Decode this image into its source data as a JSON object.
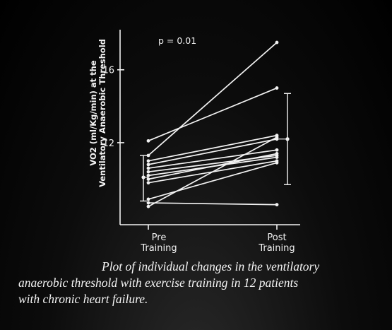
{
  "chart_data": {
    "type": "line",
    "title": "",
    "annotation": "p = 0.01",
    "xlabel": "",
    "ylabel": [
      "VO2 (ml/Kg/min) at the",
      "Ventilatory Anaerobic Threshold"
    ],
    "categories": [
      "Pre Training",
      "Post Training"
    ],
    "category_lines": [
      [
        "Pre",
        "Training"
      ],
      [
        "Post",
        "Training"
      ]
    ],
    "ylim": [
      7.5,
      18.2
    ],
    "yticks": [
      12,
      16
    ],
    "ytick_labels": [
      "12",
      "16"
    ],
    "grid": false,
    "series": [
      {
        "values": [
          12.1,
          15.0
        ]
      },
      {
        "values": [
          11.3,
          17.5
        ]
      },
      {
        "values": [
          11.0,
          12.4
        ]
      },
      {
        "values": [
          10.8,
          12.2
        ]
      },
      {
        "values": [
          10.6,
          11.6
        ]
      },
      {
        "values": [
          10.4,
          11.3
        ]
      },
      {
        "values": [
          10.2,
          11.2
        ]
      },
      {
        "values": [
          10.0,
          11.4
        ]
      },
      {
        "values": [
          9.8,
          11.0
        ]
      },
      {
        "values": [
          8.9,
          10.9
        ]
      },
      {
        "values": [
          8.7,
          8.6
        ]
      },
      {
        "values": [
          8.5,
          12.3
        ]
      }
    ],
    "summary": [
      {
        "category": "Pre Training",
        "mean": 10.1,
        "low": 8.8,
        "high": 11.3
      },
      {
        "category": "Post Training",
        "mean": 12.2,
        "low": 9.7,
        "high": 14.7
      }
    ]
  },
  "caption": {
    "line1": "Plot of individual changes in the ventilatory",
    "line2": "anaerobic threshold with exercise training in 12 patients",
    "line3": "with chronic heart failure."
  },
  "colors": {
    "foreground": "#f2f2f2",
    "background": "#000000"
  }
}
